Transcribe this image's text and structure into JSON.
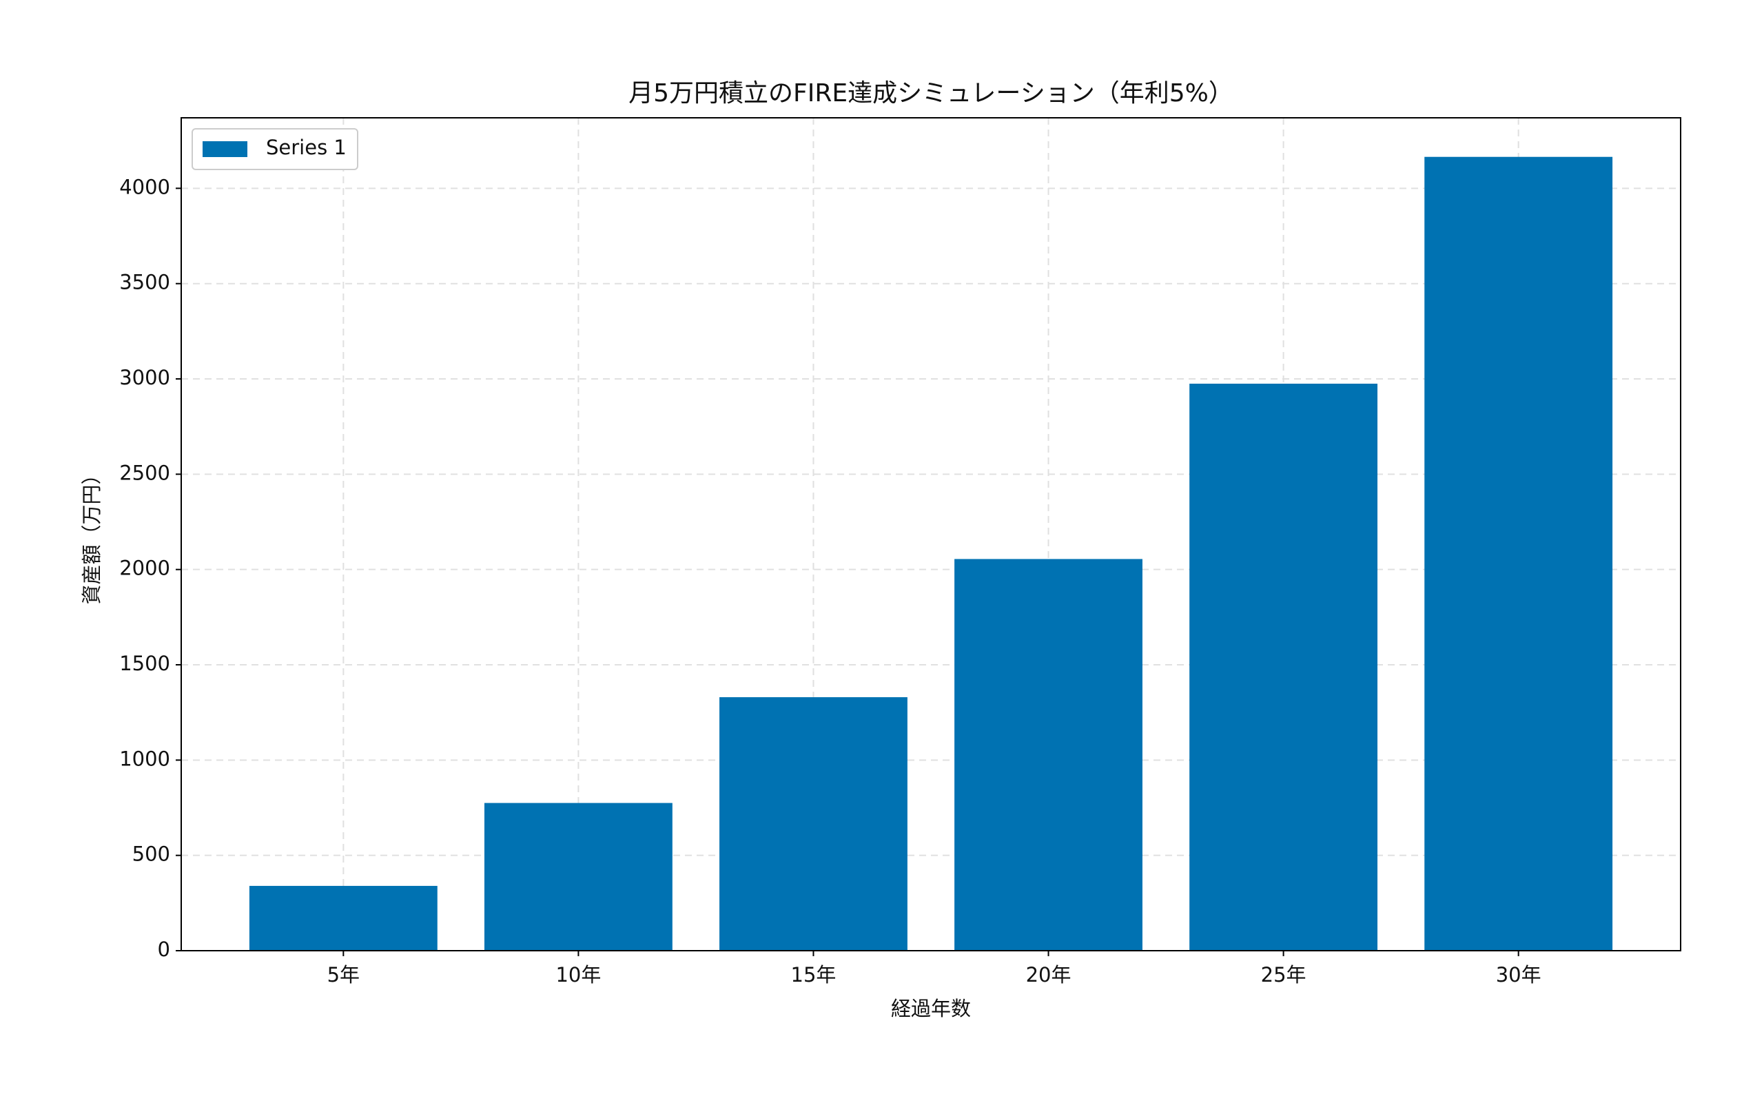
{
  "chart_data": {
    "type": "bar",
    "title": "月5万円積立のFIRE達成シミュレーション（年利5%）",
    "x_label": "経過年数",
    "y_label": "資産額（万円）",
    "categories": [
      "5年",
      "10年",
      "15年",
      "20年",
      "25年",
      "30年"
    ],
    "series": [
      {
        "name": "Series 1",
        "color": "#0072b2",
        "values": [
          340,
          775,
          1330,
          2055,
          2975,
          4165
        ]
      }
    ],
    "ylim": [
      0,
      4370
    ],
    "yticks": [
      0,
      500,
      1000,
      1500,
      2000,
      2500,
      3000,
      3500,
      4000
    ],
    "grid": true,
    "legend": "upper left"
  }
}
